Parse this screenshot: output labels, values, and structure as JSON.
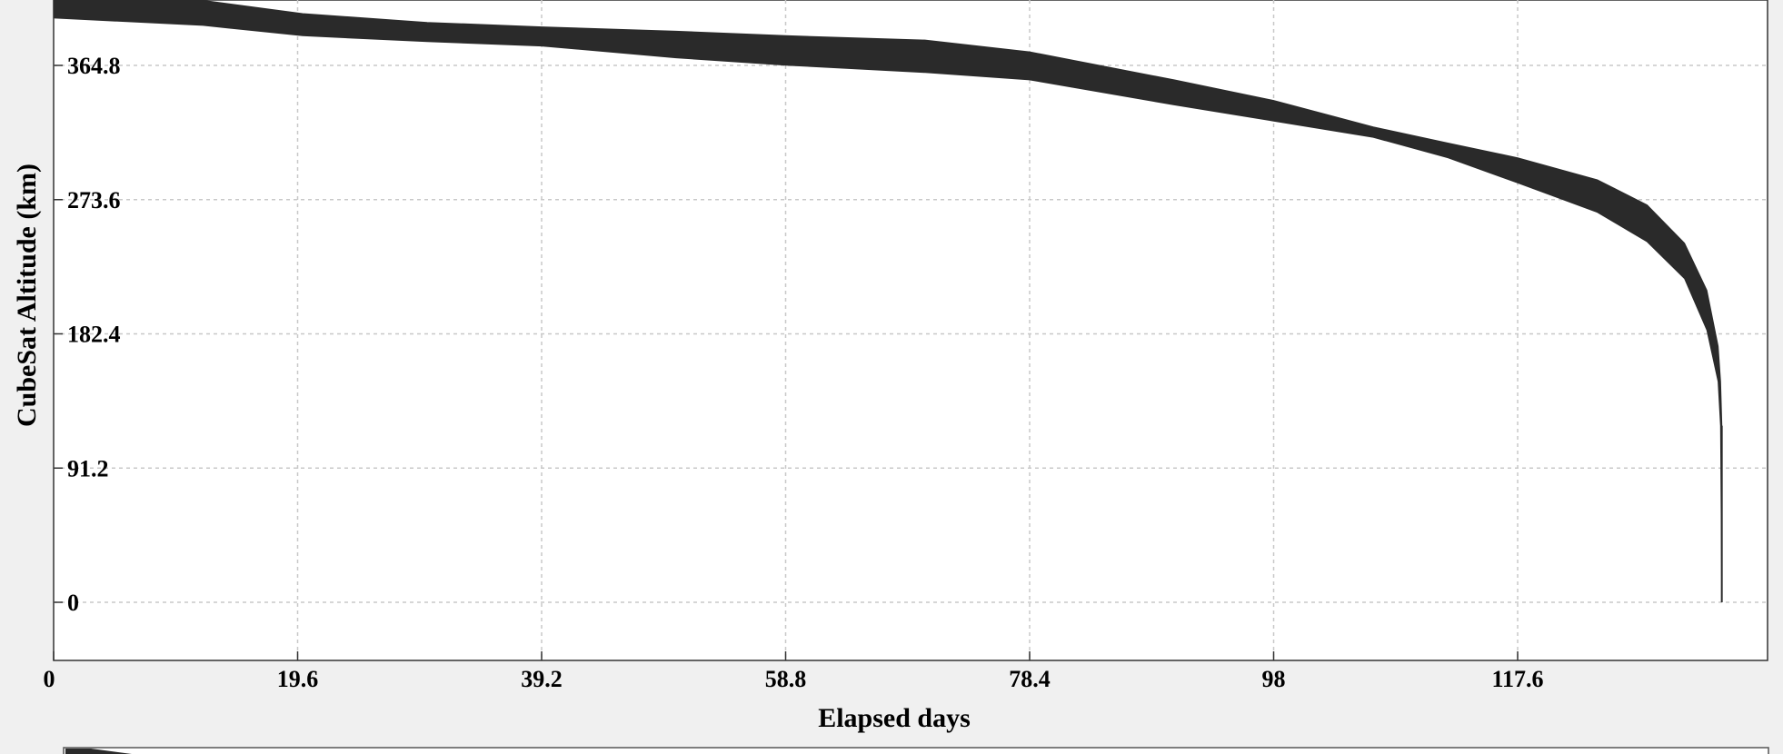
{
  "chart_data": {
    "type": "area",
    "title": "",
    "xlabel": "Elapsed days",
    "ylabel": "CubeSat Altitude (km)",
    "x_ticks": [
      "0",
      "19.6",
      "39.2",
      "58.8",
      "78.4",
      "98",
      "117.6"
    ],
    "y_ticks": [
      "0",
      "91.2",
      "182.4",
      "273.6",
      "364.8"
    ],
    "xlim": [
      0,
      137.2
    ],
    "ylim": [
      -40,
      400
    ],
    "grid": true,
    "series": [
      {
        "color": "#2a2a2a",
        "band": [
          {
            "x": 0,
            "lo": 397,
            "hi": 410
          },
          {
            "x": 12,
            "lo": 392,
            "hi": 409
          },
          {
            "x": 20,
            "lo": 385,
            "hi": 400
          },
          {
            "x": 30,
            "lo": 381,
            "hi": 394
          },
          {
            "x": 39.2,
            "lo": 378,
            "hi": 391
          },
          {
            "x": 50,
            "lo": 370,
            "hi": 388
          },
          {
            "x": 58.8,
            "lo": 365,
            "hi": 385
          },
          {
            "x": 70,
            "lo": 360,
            "hi": 382
          },
          {
            "x": 78.4,
            "lo": 355,
            "hi": 374
          },
          {
            "x": 90,
            "lo": 338,
            "hi": 355
          },
          {
            "x": 98,
            "lo": 327,
            "hi": 341
          },
          {
            "x": 106,
            "lo": 316,
            "hi": 323
          },
          {
            "x": 112,
            "lo": 302,
            "hi": 312
          },
          {
            "x": 117.6,
            "lo": 285,
            "hi": 302
          },
          {
            "x": 124,
            "lo": 265,
            "hi": 287
          },
          {
            "x": 128,
            "lo": 245,
            "hi": 270
          },
          {
            "x": 131,
            "lo": 220,
            "hi": 244
          },
          {
            "x": 132.8,
            "lo": 185,
            "hi": 212
          },
          {
            "x": 133.7,
            "lo": 150,
            "hi": 174
          },
          {
            "x": 133.9,
            "lo": 120,
            "hi": 150
          },
          {
            "x": 134.0,
            "lo": 0,
            "hi": 120
          }
        ]
      }
    ]
  }
}
